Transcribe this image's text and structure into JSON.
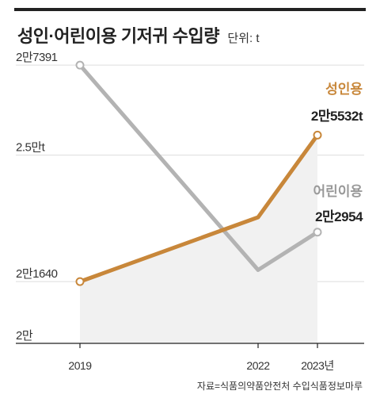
{
  "title": "성인·어린이용 기저귀 수입량",
  "unit": "단위: t",
  "source": "자료=식품의약품안전처 수입식품정보마루",
  "chart_data": {
    "type": "line",
    "x": [
      "2019",
      "2022",
      "2023년"
    ],
    "x_values": [
      2019,
      2022,
      2023
    ],
    "y_ticks": [
      {
        "value": 27391,
        "label": "2만7391"
      },
      {
        "value": 25000,
        "label": "2.5만t"
      },
      {
        "value": 21640,
        "label": "2만1640"
      },
      {
        "value": 20000,
        "label": "2만"
      }
    ],
    "ylim": [
      20000,
      27700
    ],
    "grid": "horizontal",
    "series": [
      {
        "name": "성인용",
        "color": "#c8873a",
        "values": [
          21640,
          23350,
          25532
        ],
        "end_label": "2만5532t"
      },
      {
        "name": "어린이용",
        "color": "#b3b3b3",
        "values": [
          27391,
          21950,
          22954
        ],
        "end_label": "2만2954"
      }
    ]
  }
}
